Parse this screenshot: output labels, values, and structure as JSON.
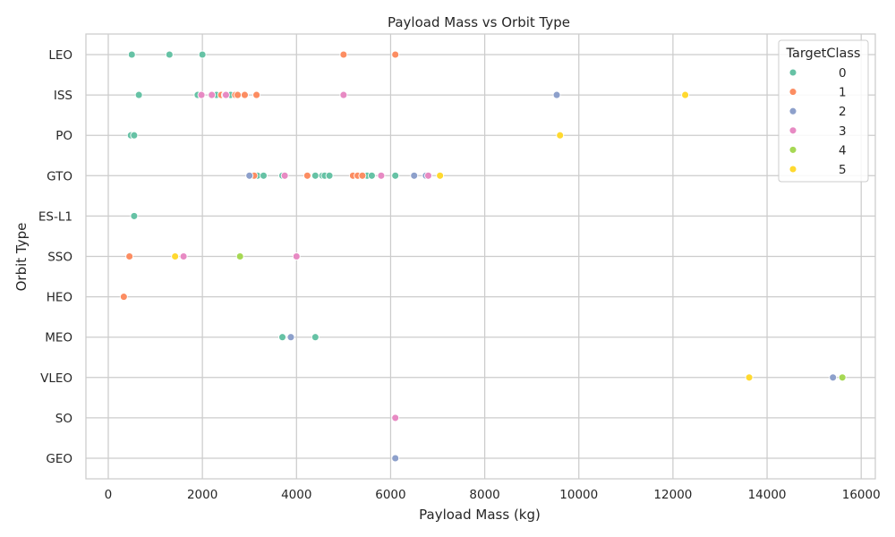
{
  "chart_data": {
    "type": "scatter",
    "title": "Payload Mass vs Orbit Type",
    "xlabel": "Payload Mass (kg)",
    "ylabel": "Orbit Type",
    "xlim": [
      -475,
      16300
    ],
    "xticks": [
      0,
      2000,
      4000,
      6000,
      8000,
      10000,
      12000,
      14000,
      16000
    ],
    "categories": [
      "LEO",
      "ISS",
      "PO",
      "GTO",
      "ES-L1",
      "SSO",
      "HEO",
      "MEO",
      "VLEO",
      "SO",
      "GEO"
    ],
    "grid": true,
    "legend": {
      "title": "TargetClass",
      "placement": "top-right",
      "entries": [
        "0",
        "1",
        "2",
        "3",
        "4",
        "5"
      ]
    },
    "colors": {
      "0": "#66c2a5",
      "1": "#fc8d62",
      "2": "#8da0cb",
      "3": "#e78ac3",
      "4": "#a6d854",
      "5": "#ffd92f"
    },
    "series": [
      {
        "name": "0",
        "points": [
          {
            "x": 500,
            "y": "LEO"
          },
          {
            "x": 1300,
            "y": "LEO"
          },
          {
            "x": 2000,
            "y": "LEO"
          },
          {
            "x": 650,
            "y": "ISS"
          },
          {
            "x": 1900,
            "y": "ISS"
          },
          {
            "x": 2300,
            "y": "ISS"
          },
          {
            "x": 2600,
            "y": "ISS"
          },
          {
            "x": 480,
            "y": "PO"
          },
          {
            "x": 550,
            "y": "PO"
          },
          {
            "x": 3170,
            "y": "GTO"
          },
          {
            "x": 3300,
            "y": "GTO"
          },
          {
            "x": 3700,
            "y": "GTO"
          },
          {
            "x": 4400,
            "y": "GTO"
          },
          {
            "x": 4550,
            "y": "GTO"
          },
          {
            "x": 4600,
            "y": "GTO"
          },
          {
            "x": 4700,
            "y": "GTO"
          },
          {
            "x": 5500,
            "y": "GTO"
          },
          {
            "x": 5600,
            "y": "GTO"
          },
          {
            "x": 6100,
            "y": "GTO"
          },
          {
            "x": 550,
            "y": "ES-L1"
          },
          {
            "x": 3700,
            "y": "MEO"
          },
          {
            "x": 4400,
            "y": "MEO"
          }
        ]
      },
      {
        "name": "1",
        "points": [
          {
            "x": 5000,
            "y": "LEO"
          },
          {
            "x": 6100,
            "y": "LEO"
          },
          {
            "x": 2400,
            "y": "ISS"
          },
          {
            "x": 2700,
            "y": "ISS"
          },
          {
            "x": 2750,
            "y": "ISS"
          },
          {
            "x": 2900,
            "y": "ISS"
          },
          {
            "x": 3150,
            "y": "ISS"
          },
          {
            "x": 3100,
            "y": "GTO"
          },
          {
            "x": 4230,
            "y": "GTO"
          },
          {
            "x": 5200,
            "y": "GTO"
          },
          {
            "x": 5300,
            "y": "GTO"
          },
          {
            "x": 5400,
            "y": "GTO"
          },
          {
            "x": 450,
            "y": "SSO"
          },
          {
            "x": 330,
            "y": "HEO"
          }
        ]
      },
      {
        "name": "2",
        "points": [
          {
            "x": 2480,
            "y": "ISS"
          },
          {
            "x": 9530,
            "y": "ISS"
          },
          {
            "x": 3000,
            "y": "GTO"
          },
          {
            "x": 6500,
            "y": "GTO"
          },
          {
            "x": 6750,
            "y": "GTO"
          },
          {
            "x": 3880,
            "y": "MEO"
          },
          {
            "x": 15400,
            "y": "VLEO"
          },
          {
            "x": 6100,
            "y": "GEO"
          }
        ]
      },
      {
        "name": "3",
        "points": [
          {
            "x": 1980,
            "y": "ISS"
          },
          {
            "x": 2200,
            "y": "ISS"
          },
          {
            "x": 2500,
            "y": "ISS"
          },
          {
            "x": 5000,
            "y": "ISS"
          },
          {
            "x": 3750,
            "y": "GTO"
          },
          {
            "x": 5800,
            "y": "GTO"
          },
          {
            "x": 6800,
            "y": "GTO"
          },
          {
            "x": 1600,
            "y": "SSO"
          },
          {
            "x": 4000,
            "y": "SSO"
          },
          {
            "x": 6100,
            "y": "SO"
          }
        ]
      },
      {
        "name": "4",
        "points": [
          {
            "x": 2800,
            "y": "SSO"
          },
          {
            "x": 15600,
            "y": "VLEO"
          }
        ]
      },
      {
        "name": "5",
        "points": [
          {
            "x": 12260,
            "y": "ISS"
          },
          {
            "x": 9600,
            "y": "PO"
          },
          {
            "x": 7050,
            "y": "GTO"
          },
          {
            "x": 1420,
            "y": "SSO"
          },
          {
            "x": 13620,
            "y": "VLEO"
          }
        ]
      }
    ]
  }
}
